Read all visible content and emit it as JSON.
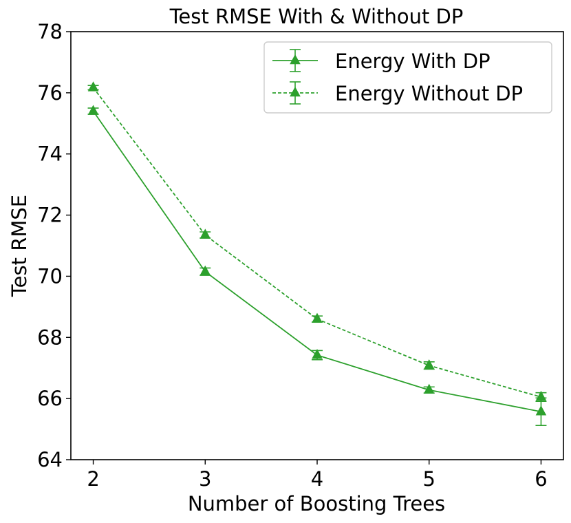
{
  "chart_data": {
    "type": "line",
    "title": "Test RMSE With & Without DP",
    "xlabel": "Number of Boosting Trees",
    "ylabel": "Test RMSE",
    "x": [
      2,
      3,
      4,
      5,
      6
    ],
    "xticks": [
      "2",
      "3",
      "4",
      "5",
      "6"
    ],
    "yticks": [
      "64",
      "66",
      "68",
      "70",
      "72",
      "74",
      "76",
      "78"
    ],
    "xlim": [
      1.8,
      6.2
    ],
    "ylim": [
      64,
      78
    ],
    "grid": false,
    "legend_position": "top-right",
    "color": "#2ca02c",
    "series": [
      {
        "name": "Energy With DP",
        "style": "solid",
        "marker": "triangle",
        "values": [
          75.4,
          70.15,
          67.42,
          66.28,
          65.57
        ],
        "errors": [
          0.1,
          0.12,
          0.15,
          0.1,
          0.45
        ]
      },
      {
        "name": "Energy Without DP",
        "style": "dashed",
        "marker": "triangle",
        "values": [
          76.17,
          71.35,
          68.6,
          67.08,
          66.05
        ],
        "errors": [
          0.07,
          0.1,
          0.1,
          0.12,
          0.14
        ]
      }
    ]
  }
}
